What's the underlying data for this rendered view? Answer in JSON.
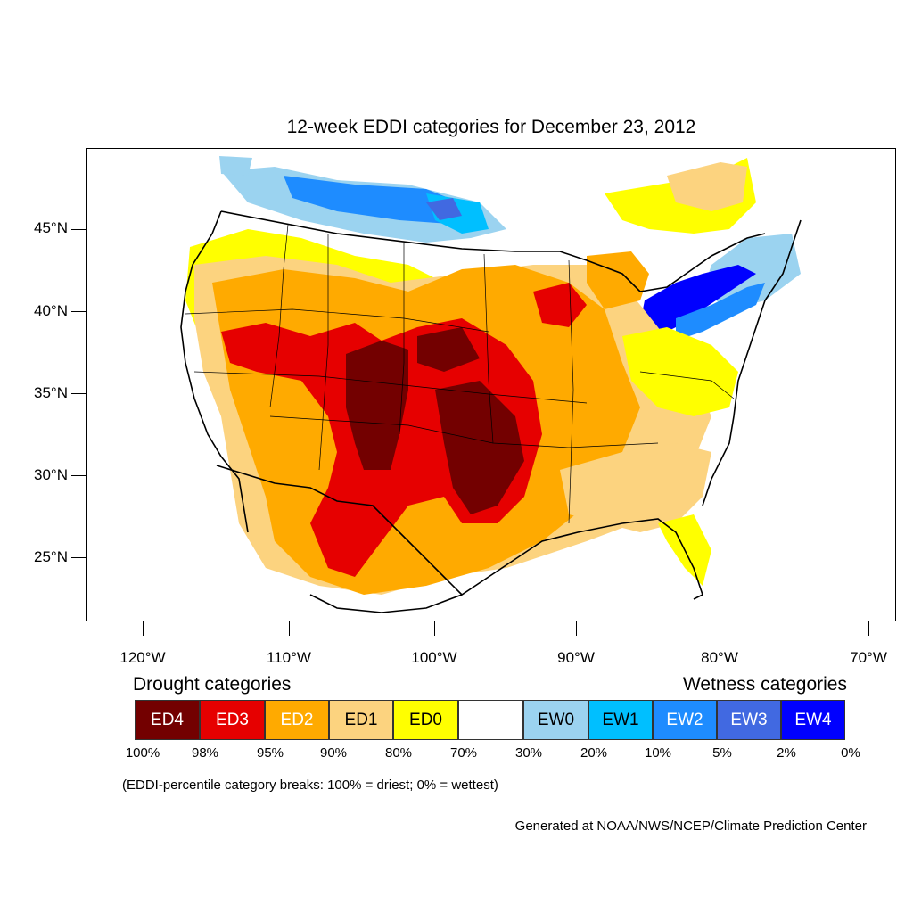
{
  "title": "12-week EDDI categories for December 23, 2012",
  "lat_axis": {
    "ticks": [
      {
        "value": 45,
        "label": "45°N"
      },
      {
        "value": 40,
        "label": "40°N"
      },
      {
        "value": 35,
        "label": "35°N"
      },
      {
        "value": 30,
        "label": "30°N"
      },
      {
        "value": 25,
        "label": "25°N"
      }
    ],
    "range": [
      21,
      50
    ]
  },
  "lon_axis": {
    "ticks": [
      {
        "value": -120,
        "label": "120°W"
      },
      {
        "value": -110,
        "label": "110°W"
      },
      {
        "value": -100,
        "label": "100°W"
      },
      {
        "value": -90,
        "label": "90°W"
      },
      {
        "value": -80,
        "label": "80°W"
      },
      {
        "value": -70,
        "label": "70°W"
      }
    ],
    "range": [
      -124,
      -68.3
    ]
  },
  "legend": {
    "drought_title": "Drought categories",
    "wetness_title": "Wetness categories",
    "categories": [
      {
        "label": "ED4",
        "color": "#730000",
        "text_color": "#ffffff"
      },
      {
        "label": "ED3",
        "color": "#e60000",
        "text_color": "#ffffff"
      },
      {
        "label": "ED2",
        "color": "#ffaa00",
        "text_color": "#ffffff"
      },
      {
        "label": "ED1",
        "color": "#fcd37f",
        "text_color": "#000000"
      },
      {
        "label": "ED0",
        "color": "#ffff00",
        "text_color": "#000000"
      },
      {
        "label": "",
        "color": "#ffffff",
        "text_color": "#000000"
      },
      {
        "label": "EW0",
        "color": "#9bd3f0",
        "text_color": "#000000"
      },
      {
        "label": "EW1",
        "color": "#00bfff",
        "text_color": "#000000"
      },
      {
        "label": "EW2",
        "color": "#1e8cff",
        "text_color": "#ffffff"
      },
      {
        "label": "EW3",
        "color": "#4169e1",
        "text_color": "#ffffff"
      },
      {
        "label": "EW4",
        "color": "#0000ff",
        "text_color": "#ffffff"
      }
    ],
    "breaks": [
      "100%",
      "98%",
      "95%",
      "90%",
      "80%",
      "70%",
      "30%",
      "20%",
      "10%",
      "5%",
      "2%",
      "0%"
    ]
  },
  "note": "(EDDI-percentile category breaks: 100% = driest; 0% = wettest)",
  "credit": "Generated at NOAA/NWS/NCEP/Climate Prediction Center"
}
